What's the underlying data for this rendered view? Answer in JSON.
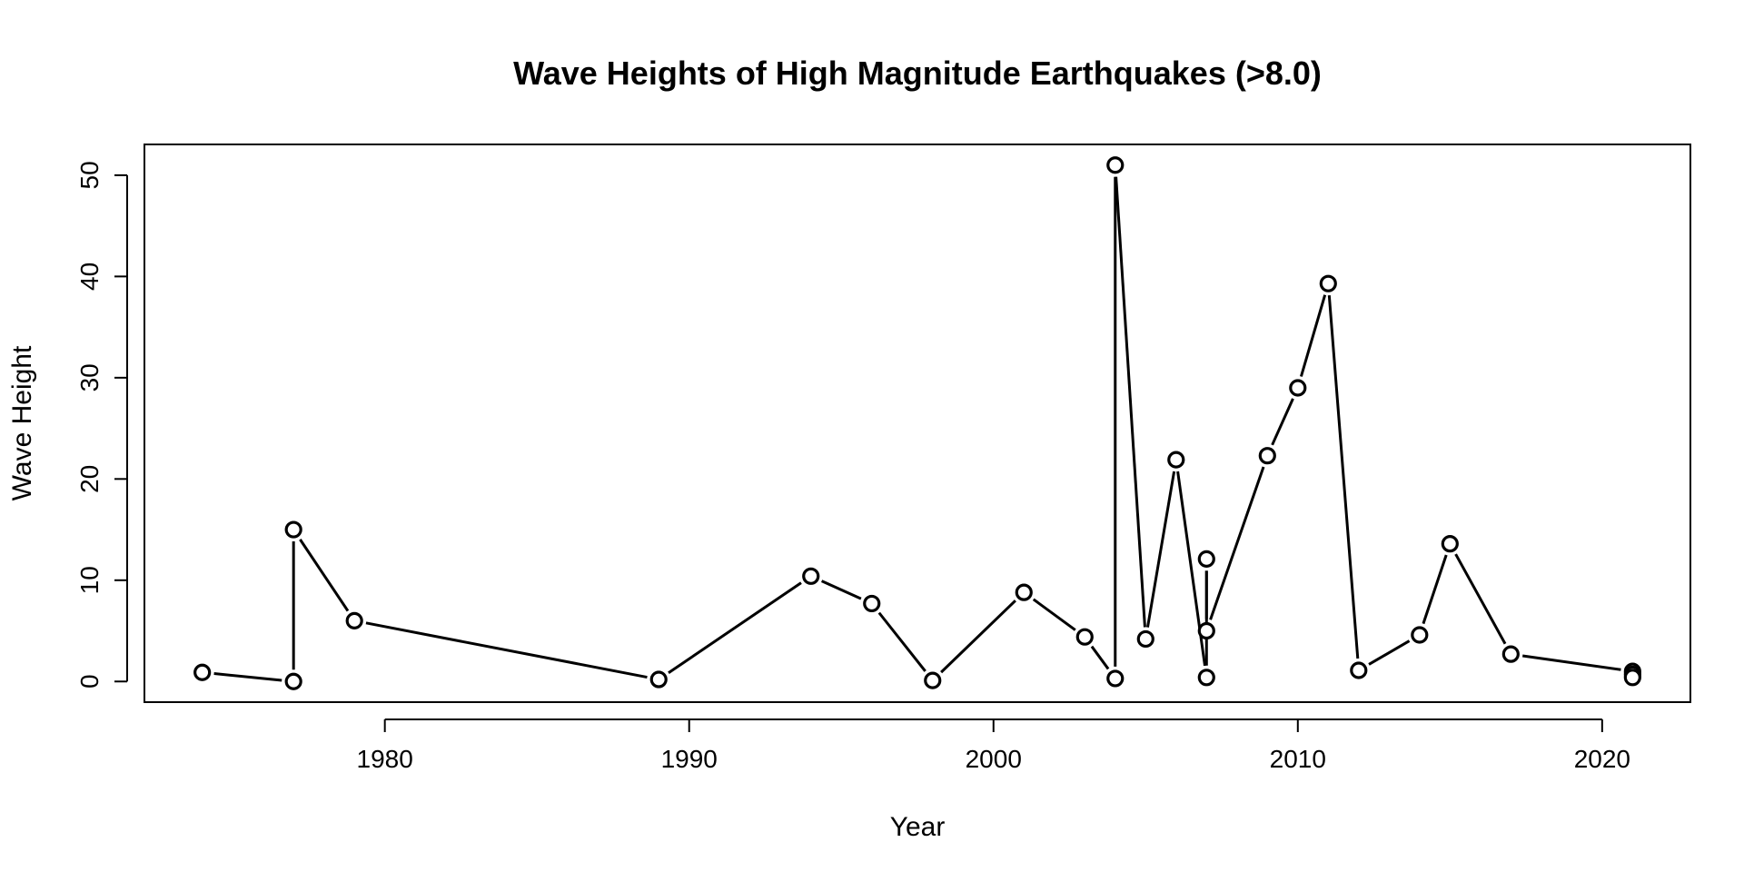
{
  "chart_data": {
    "type": "line",
    "title": "Wave Heights of High Magnitude Earthquakes (>8.0)",
    "xlabel": "Year",
    "ylabel": "Wave Height",
    "xlim": [
      1972.1,
      2022.9
    ],
    "ylim": [
      -2.04,
      53.04
    ],
    "xticks": [
      1980,
      1990,
      2000,
      2010,
      2020
    ],
    "yticks": [
      0,
      10,
      20,
      30,
      40,
      50
    ],
    "grid": false,
    "legend": "none",
    "marker": "open-circle",
    "series": [
      {
        "name": "Wave Height",
        "color": "#000000",
        "x": [
          1974,
          1977,
          1977,
          1979,
          1989,
          1994,
          1996,
          1998,
          2001,
          2003,
          2004,
          2004,
          2005,
          2006,
          2007,
          2007,
          2007,
          2009,
          2010,
          2011,
          2012,
          2014,
          2015,
          2017,
          2021,
          2021,
          2021
        ],
        "y": [
          0.9,
          0.0,
          15.0,
          6.0,
          0.2,
          10.4,
          7.7,
          0.1,
          8.8,
          4.4,
          0.3,
          51.0,
          4.2,
          21.9,
          0.4,
          12.1,
          5.0,
          22.3,
          29.0,
          39.3,
          1.1,
          4.6,
          13.6,
          2.7,
          1.0,
          0.7,
          0.4
        ]
      }
    ]
  }
}
